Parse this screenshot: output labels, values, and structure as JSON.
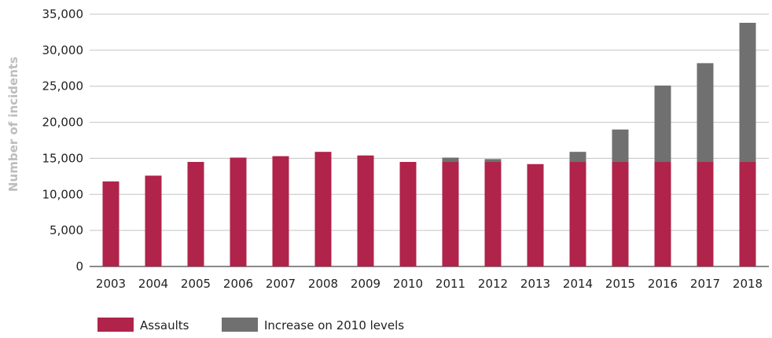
{
  "chart_data": {
    "type": "bar",
    "stacked": true,
    "title": "",
    "xlabel": "",
    "ylabel": "Number of incidents",
    "ylim": [
      0,
      35000
    ],
    "yticks": [
      0,
      5000,
      10000,
      15000,
      20000,
      25000,
      30000,
      35000
    ],
    "ytick_labels": [
      "0",
      "5,000",
      "10,000",
      "15,000",
      "20,000",
      "25,000",
      "30,000",
      "35,000"
    ],
    "grid": true,
    "legend_position": "bottom-left",
    "categories": [
      "2003",
      "2004",
      "2005",
      "2006",
      "2007",
      "2008",
      "2009",
      "2010",
      "2011",
      "2012",
      "2013",
      "2014",
      "2015",
      "2016",
      "2017",
      "2018"
    ],
    "series": [
      {
        "name": "Assaults",
        "color": "#b0234a",
        "values": [
          11800,
          12600,
          14500,
          15100,
          15300,
          15900,
          15400,
          14500,
          14500,
          14500,
          14200,
          14500,
          14500,
          14500,
          14500,
          14500
        ]
      },
      {
        "name": "Increase on 2010 levels",
        "color": "#707070",
        "values": [
          0,
          0,
          0,
          0,
          0,
          0,
          0,
          0,
          600,
          400,
          0,
          1400,
          4500,
          10600,
          13700,
          19300
        ]
      }
    ]
  }
}
